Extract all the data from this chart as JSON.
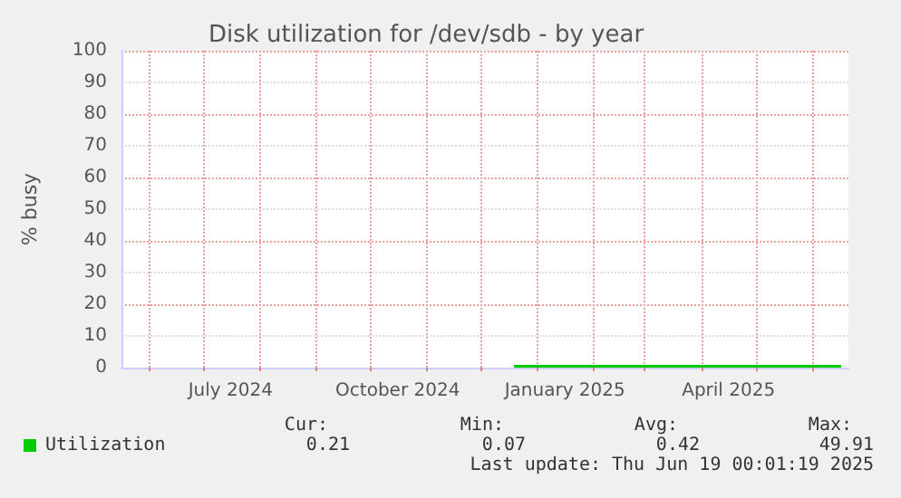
{
  "chart_data": {
    "type": "line",
    "title": "Disk utilization for /dev/sdb - by year",
    "ylabel": "% busy",
    "series": [
      {
        "name": "Utilization",
        "color": "#00cc00",
        "x": [
          "2024-12-19",
          "2025-01-15",
          "2025-02-15",
          "2025-03-15",
          "2025-04-15",
          "2025-05-15",
          "2025-06-17"
        ],
        "values": [
          0.4,
          0.4,
          0.4,
          0.4,
          0.4,
          0.4,
          0.4
        ]
      }
    ],
    "xlim": [
      "2024-05-17",
      "2025-06-21"
    ],
    "xticks": [
      {
        "value": "2024-06-01",
        "label": null
      },
      {
        "value": "2024-07-01",
        "label": null
      },
      {
        "value": "2024-07-16",
        "label": "July 2024"
      },
      {
        "value": "2024-08-01",
        "label": null
      },
      {
        "value": "2024-09-01",
        "label": null
      },
      {
        "value": "2024-10-01",
        "label": null
      },
      {
        "value": "2024-10-16",
        "label": "October 2024"
      },
      {
        "value": "2024-11-01",
        "label": null
      },
      {
        "value": "2024-12-01",
        "label": null
      },
      {
        "value": "2025-01-01",
        "label": null
      },
      {
        "value": "2025-01-16",
        "label": "January 2025"
      },
      {
        "value": "2025-02-01",
        "label": null
      },
      {
        "value": "2025-03-01",
        "label": null
      },
      {
        "value": "2025-04-01",
        "label": null
      },
      {
        "value": "2025-04-16",
        "label": "April 2025"
      },
      {
        "value": "2025-05-01",
        "label": null
      },
      {
        "value": "2025-06-01",
        "label": null
      }
    ],
    "ylim": [
      0,
      100
    ],
    "yticks": [
      0,
      10,
      20,
      30,
      40,
      50,
      60,
      70,
      80,
      90,
      100
    ],
    "grid": true,
    "legend": "bottom left",
    "marker": "none",
    "line_style": "solid",
    "annotations": [
      "Cur:",
      "Min:",
      "Avg:",
      "Max:",
      "0.21",
      "0.07",
      "0.42",
      "49.91",
      "Last update: Thu Jun 19 00:01:19 2025"
    ]
  }
}
